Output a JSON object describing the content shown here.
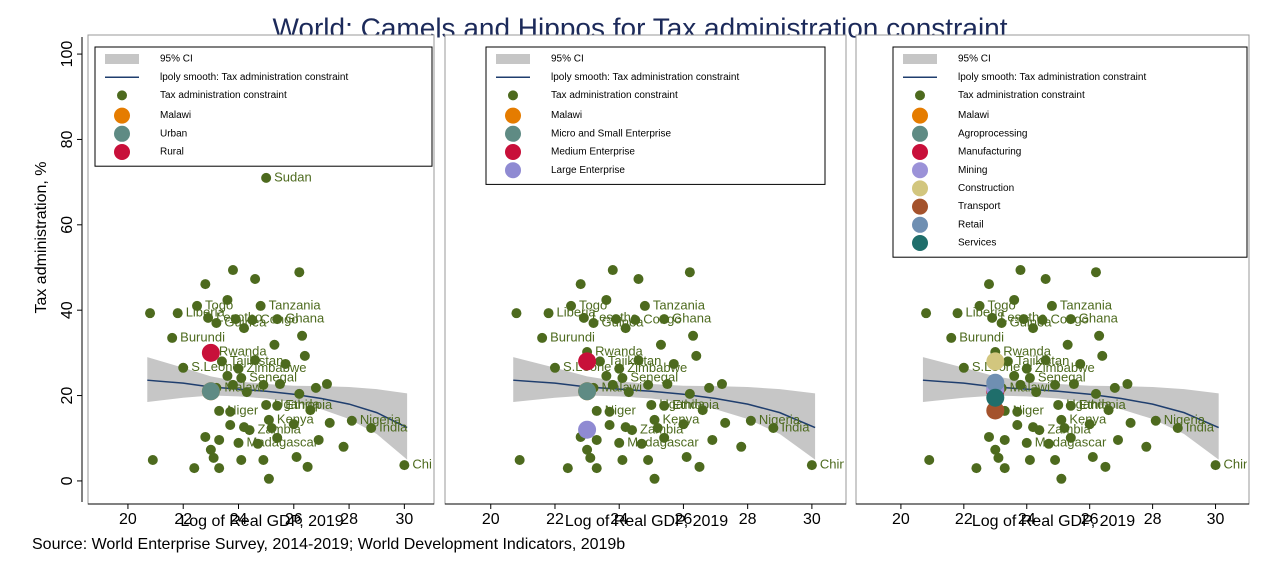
{
  "title": "World: Camels and Hippos for Tax administration constraint",
  "source": "Source: World Enterprise Survey, 2014-2019; World Development Indicators, 2019b",
  "chart_data": [
    {
      "type": "scatter",
      "x_label": "Log of Real GDP, 2019",
      "y_label": "Tax administration, %",
      "xlim": [
        18.7,
        31
      ],
      "ylim": [
        -4,
        104
      ],
      "xticks": [
        20,
        22,
        24,
        26,
        28,
        30
      ],
      "yticks": [
        0,
        20,
        40,
        60,
        80,
        100
      ],
      "ci": {
        "name": "95% CI",
        "color": "#c6c6c6",
        "x": [
          20.7,
          22,
          23,
          24,
          25,
          26,
          27,
          28,
          29,
          30.1
        ],
        "lower": [
          18.5,
          19.5,
          20,
          19.8,
          19.3,
          18.4,
          16.8,
          14.5,
          11,
          5
        ],
        "upper": [
          29,
          26.5,
          24.5,
          23.3,
          22.7,
          22.3,
          22.2,
          22,
          21.5,
          20.5
        ]
      },
      "smooth": {
        "name": "lpoly smooth: Tax administration constraint",
        "color": "#1f3e6e",
        "x": [
          20.7,
          22,
          23,
          24,
          25,
          26,
          27,
          28,
          29,
          30.1
        ],
        "values": [
          23.6,
          22.9,
          22,
          21.5,
          21,
          20.3,
          19.3,
          18,
          16,
          12.5
        ]
      },
      "points": {
        "name": "Tax administration constraint",
        "color": "#4d6a1e",
        "x": [
          20.8,
          20.9,
          21.6,
          21.8,
          22.0,
          22.4,
          22.5,
          22.8,
          22.8,
          22.9,
          23.0,
          23.0,
          23.1,
          23.2,
          23.2,
          23.3,
          23.3,
          23.3,
          23.4,
          23.6,
          23.6,
          23.7,
          23.7,
          24.0,
          23.8,
          23.8,
          23.9,
          24.0,
          24.1,
          24.1,
          24.2,
          24.2,
          24.3,
          24.4,
          24.5,
          24.6,
          24.6,
          24.7,
          24.8,
          24.9,
          24.9,
          25.0,
          25.0,
          25.1,
          25.1,
          25.2,
          25.3,
          25.4,
          25.4,
          25.4,
          25.5,
          25.7,
          26.0,
          26.1,
          26.2,
          26.2,
          26.3,
          26.4,
          26.5,
          26.6,
          26.8,
          26.9,
          27.2,
          27.3,
          27.8,
          28.1,
          28.8,
          30.0
        ],
        "y": [
          39.3,
          4.9,
          33.5,
          39.3,
          26.5,
          3.0,
          41.0,
          10.3,
          46.1,
          38.2,
          7.3,
          30.2,
          5.4,
          37.0,
          21.8,
          16.4,
          9.6,
          3.0,
          28.0,
          42.4,
          24.6,
          13.1,
          16.2,
          26.3,
          22.5,
          49.4,
          37.9,
          8.9,
          4.9,
          24.1,
          35.8,
          12.6,
          20.8,
          11.9,
          37.7,
          47.3,
          28.3,
          8.7,
          41.0,
          4.9,
          22.5,
          17.8,
          71.0,
          0.5,
          14.3,
          12.4,
          31.9,
          37.9,
          17.6,
          10.1,
          22.7,
          27.4,
          13.3,
          5.6,
          48.9,
          20.4,
          34.0,
          29.3,
          3.3,
          16.6,
          21.8,
          9.6,
          22.7,
          13.6,
          8.0,
          14.1,
          12.4,
          3.7
        ],
        "labels": [
          null,
          null,
          "Burundi",
          "Liberia",
          "S.Leone",
          null,
          "Togo",
          null,
          null,
          "Lesotho",
          null,
          "Rwanda",
          null,
          "Guinea",
          "Malawi",
          "Niger",
          null,
          null,
          "Tajikistan",
          null,
          null,
          null,
          null,
          "Zimbabwe",
          null,
          null,
          null,
          "Madagascar",
          null,
          "Senegal",
          null,
          null,
          null,
          "Zambia",
          "Congo",
          null,
          null,
          null,
          "Tanzania",
          null,
          null,
          "Uganda",
          "Sudan",
          null,
          "Kenya",
          null,
          null,
          "Ghana",
          "Ethiopia",
          null,
          null,
          null,
          null,
          null,
          null,
          null,
          null,
          null,
          null,
          null,
          null,
          null,
          null,
          null,
          null,
          "Nigeria",
          "India",
          "China"
        ]
      },
      "series": [
        {
          "name": "Malawi",
          "color": "#e57c00",
          "x": [
            23.0
          ],
          "values": [
            21
          ]
        },
        {
          "name": "Urban",
          "color": "#5f8b84",
          "x": [
            23.0
          ],
          "values": [
            21
          ]
        },
        {
          "name": "Rural",
          "color": "#c8103a",
          "x": [
            23.0
          ],
          "values": [
            30
          ]
        }
      ]
    },
    {
      "type": "scatter",
      "x_label": "Log of Real GDP, 2019",
      "xlim": [
        18.7,
        31
      ],
      "ylim": [
        -4,
        104
      ],
      "xticks": [
        20,
        22,
        24,
        26,
        28,
        30
      ],
      "ci": {
        "name": "95% CI",
        "color": "#c6c6c6",
        "x": [
          20.7,
          22,
          23,
          24,
          25,
          26,
          27,
          28,
          29,
          30.1
        ],
        "lower": [
          18.5,
          19.5,
          20,
          19.8,
          19.3,
          18.4,
          16.8,
          14.5,
          11,
          5
        ],
        "upper": [
          29,
          26.5,
          24.5,
          23.3,
          22.7,
          22.3,
          22.2,
          22,
          21.5,
          20.5
        ]
      },
      "smooth": {
        "name": "lpoly smooth: Tax administration constraint",
        "color": "#1f3e6e",
        "x": [
          20.7,
          22,
          23,
          24,
          25,
          26,
          27,
          28,
          29,
          30.1
        ],
        "values": [
          23.6,
          22.9,
          22,
          21.5,
          21,
          20.3,
          19.3,
          18,
          16,
          12.5
        ]
      },
      "points": {
        "name": "Tax administration constraint",
        "color": "#4d6a1e",
        "x": [
          20.8,
          20.9,
          21.6,
          21.8,
          22.0,
          22.4,
          22.5,
          22.8,
          22.8,
          22.9,
          23.0,
          23.0,
          23.1,
          23.2,
          23.2,
          23.3,
          23.3,
          23.3,
          23.4,
          23.6,
          23.6,
          23.7,
          23.7,
          24.0,
          23.8,
          23.8,
          23.9,
          24.0,
          24.1,
          24.1,
          24.2,
          24.2,
          24.3,
          24.4,
          24.5,
          24.6,
          24.6,
          24.7,
          24.8,
          24.9,
          24.9,
          25.0,
          25.0,
          25.1,
          25.1,
          25.2,
          25.3,
          25.4,
          25.4,
          25.4,
          25.5,
          25.7,
          26.0,
          26.1,
          26.2,
          26.2,
          26.3,
          26.4,
          26.5,
          26.6,
          26.8,
          26.9,
          27.2,
          27.3,
          27.8,
          28.1,
          28.8,
          30.0
        ],
        "y": [
          39.3,
          4.9,
          33.5,
          39.3,
          26.5,
          3.0,
          41.0,
          10.3,
          46.1,
          38.2,
          7.3,
          30.2,
          5.4,
          37.0,
          21.8,
          16.4,
          9.6,
          3.0,
          28.0,
          42.4,
          24.6,
          13.1,
          16.2,
          26.3,
          22.5,
          49.4,
          37.9,
          8.9,
          4.9,
          24.1,
          35.8,
          12.6,
          20.8,
          11.9,
          37.7,
          47.3,
          28.3,
          8.7,
          41.0,
          4.9,
          22.5,
          17.8,
          71.0,
          0.5,
          14.3,
          12.4,
          31.9,
          37.9,
          17.6,
          10.1,
          22.7,
          27.4,
          13.3,
          5.6,
          48.9,
          20.4,
          34.0,
          29.3,
          3.3,
          16.6,
          21.8,
          9.6,
          22.7,
          13.6,
          8.0,
          14.1,
          12.4,
          3.7
        ],
        "labels": [
          null,
          null,
          "Burundi",
          "Liberia",
          "S.Leone",
          null,
          "Togo",
          null,
          null,
          "Lesotho",
          null,
          "Rwanda",
          null,
          "Guinea",
          "Malawi",
          "Niger",
          null,
          null,
          "Tajikistan",
          null,
          null,
          null,
          null,
          "Zimbabwe",
          null,
          null,
          null,
          "Madagascar",
          null,
          "Senegal",
          null,
          null,
          null,
          "Zambia",
          "Congo",
          null,
          null,
          null,
          "Tanzania",
          null,
          null,
          "Uganda",
          "Sudan",
          null,
          "Kenya",
          null,
          null,
          "Ghana",
          "Ethiopia",
          null,
          null,
          null,
          null,
          null,
          null,
          null,
          null,
          null,
          null,
          null,
          null,
          null,
          null,
          null,
          null,
          "Nigeria",
          "India",
          "China"
        ]
      },
      "series": [
        {
          "name": "Malawi",
          "color": "#e57c00",
          "x": [
            23.0
          ],
          "values": [
            21
          ]
        },
        {
          "name": "Micro and Small Enterprise",
          "color": "#5f8b84",
          "x": [
            23.0
          ],
          "values": [
            21
          ]
        },
        {
          "name": "Medium Enterprise",
          "color": "#c8103a",
          "x": [
            23.0
          ],
          "values": [
            28
          ]
        },
        {
          "name": "Large Enterprise",
          "color": "#8f8ad2",
          "x": [
            23.0
          ],
          "values": [
            12
          ]
        }
      ]
    },
    {
      "type": "scatter",
      "x_label": "Log of Real GDP, 2019",
      "xlim": [
        18.7,
        31
      ],
      "ylim": [
        -4,
        104
      ],
      "xticks": [
        20,
        22,
        24,
        26,
        28,
        30
      ],
      "ci": {
        "name": "95% CI",
        "color": "#c6c6c6",
        "x": [
          20.7,
          22,
          23,
          24,
          25,
          26,
          27,
          28,
          29,
          30.1
        ],
        "lower": [
          18.5,
          19.5,
          20,
          19.8,
          19.3,
          18.4,
          16.8,
          14.5,
          11,
          5
        ],
        "upper": [
          29,
          26.5,
          24.5,
          23.3,
          22.7,
          22.3,
          22.2,
          22,
          21.5,
          20.5
        ]
      },
      "smooth": {
        "name": "lpoly smooth: Tax administration constraint",
        "color": "#1f3e6e",
        "x": [
          20.7,
          22,
          23,
          24,
          25,
          26,
          27,
          28,
          29,
          30.1
        ],
        "values": [
          23.6,
          22.9,
          22,
          21.5,
          21,
          20.3,
          19.3,
          18,
          16,
          12.5
        ]
      },
      "points": {
        "name": "Tax administration constraint",
        "color": "#4d6a1e",
        "x": [
          20.8,
          20.9,
          21.6,
          21.8,
          22.0,
          22.4,
          22.5,
          22.8,
          22.8,
          22.9,
          23.0,
          23.0,
          23.1,
          23.2,
          23.2,
          23.3,
          23.3,
          23.3,
          23.4,
          23.6,
          23.6,
          23.7,
          23.7,
          24.0,
          23.8,
          23.8,
          23.9,
          24.0,
          24.1,
          24.1,
          24.2,
          24.2,
          24.3,
          24.4,
          24.5,
          24.6,
          24.6,
          24.7,
          24.8,
          24.9,
          24.9,
          25.0,
          25.0,
          25.1,
          25.1,
          25.2,
          25.3,
          25.4,
          25.4,
          25.4,
          25.5,
          25.7,
          26.0,
          26.1,
          26.2,
          26.2,
          26.3,
          26.4,
          26.5,
          26.6,
          26.8,
          26.9,
          27.2,
          27.3,
          27.8,
          28.1,
          28.8,
          30.0
        ],
        "y": [
          39.3,
          4.9,
          33.5,
          39.3,
          26.5,
          3.0,
          41.0,
          10.3,
          46.1,
          38.2,
          7.3,
          30.2,
          5.4,
          37.0,
          21.8,
          16.4,
          9.6,
          3.0,
          28.0,
          42.4,
          24.6,
          13.1,
          16.2,
          26.3,
          22.5,
          49.4,
          37.9,
          8.9,
          4.9,
          24.1,
          35.8,
          12.6,
          20.8,
          11.9,
          37.7,
          47.3,
          28.3,
          8.7,
          41.0,
          4.9,
          22.5,
          17.8,
          71.0,
          0.5,
          14.3,
          12.4,
          31.9,
          37.9,
          17.6,
          10.1,
          22.7,
          27.4,
          13.3,
          5.6,
          48.9,
          20.4,
          34.0,
          29.3,
          3.3,
          16.6,
          21.8,
          9.6,
          22.7,
          13.6,
          8.0,
          14.1,
          12.4,
          3.7
        ],
        "labels": [
          null,
          null,
          "Burundi",
          "Liberia",
          "S.Leone",
          null,
          "Togo",
          null,
          null,
          "Lesotho",
          null,
          "Rwanda",
          null,
          "Guinea",
          "Malawi",
          "Niger",
          null,
          null,
          "Tajikistan",
          null,
          null,
          null,
          null,
          "Zimbabwe",
          null,
          null,
          null,
          "Madagascar",
          null,
          "Senegal",
          null,
          null,
          null,
          "Zambia",
          "Congo",
          null,
          null,
          null,
          "Tanzania",
          null,
          null,
          "Uganda",
          "Sudan",
          null,
          "Kenya",
          null,
          null,
          "Ghana",
          "Ethiopia",
          null,
          null,
          null,
          null,
          null,
          null,
          null,
          null,
          null,
          null,
          null,
          null,
          null,
          null,
          null,
          null,
          "Nigeria",
          "India",
          "China"
        ]
      },
      "series": [
        {
          "name": "Malawi",
          "color": "#e57c00",
          "x": [
            23.0
          ],
          "values": [
            21
          ]
        },
        {
          "name": "Agroprocessing",
          "color": "#5f8b84",
          "x": [
            23.0
          ],
          "values": [
            22
          ]
        },
        {
          "name": "Manufacturing",
          "color": "#c8103a",
          "x": [
            23.0
          ],
          "values": [
            21
          ]
        },
        {
          "name": "Mining",
          "color": "#9b92d8",
          "x": [
            23.0
          ],
          "values": [
            21.5
          ]
        },
        {
          "name": "Construction",
          "color": "#d2c67e",
          "x": [
            23.0
          ],
          "values": [
            28
          ]
        },
        {
          "name": "Transport",
          "color": "#a4522c",
          "x": [
            23.0
          ],
          "values": [
            16.5
          ]
        },
        {
          "name": "Retail",
          "color": "#6f8fb2",
          "x": [
            23.0
          ],
          "values": [
            23
          ]
        },
        {
          "name": "Services",
          "color": "#1f6e6b",
          "x": [
            23.0
          ],
          "values": [
            19.5
          ]
        }
      ]
    }
  ]
}
